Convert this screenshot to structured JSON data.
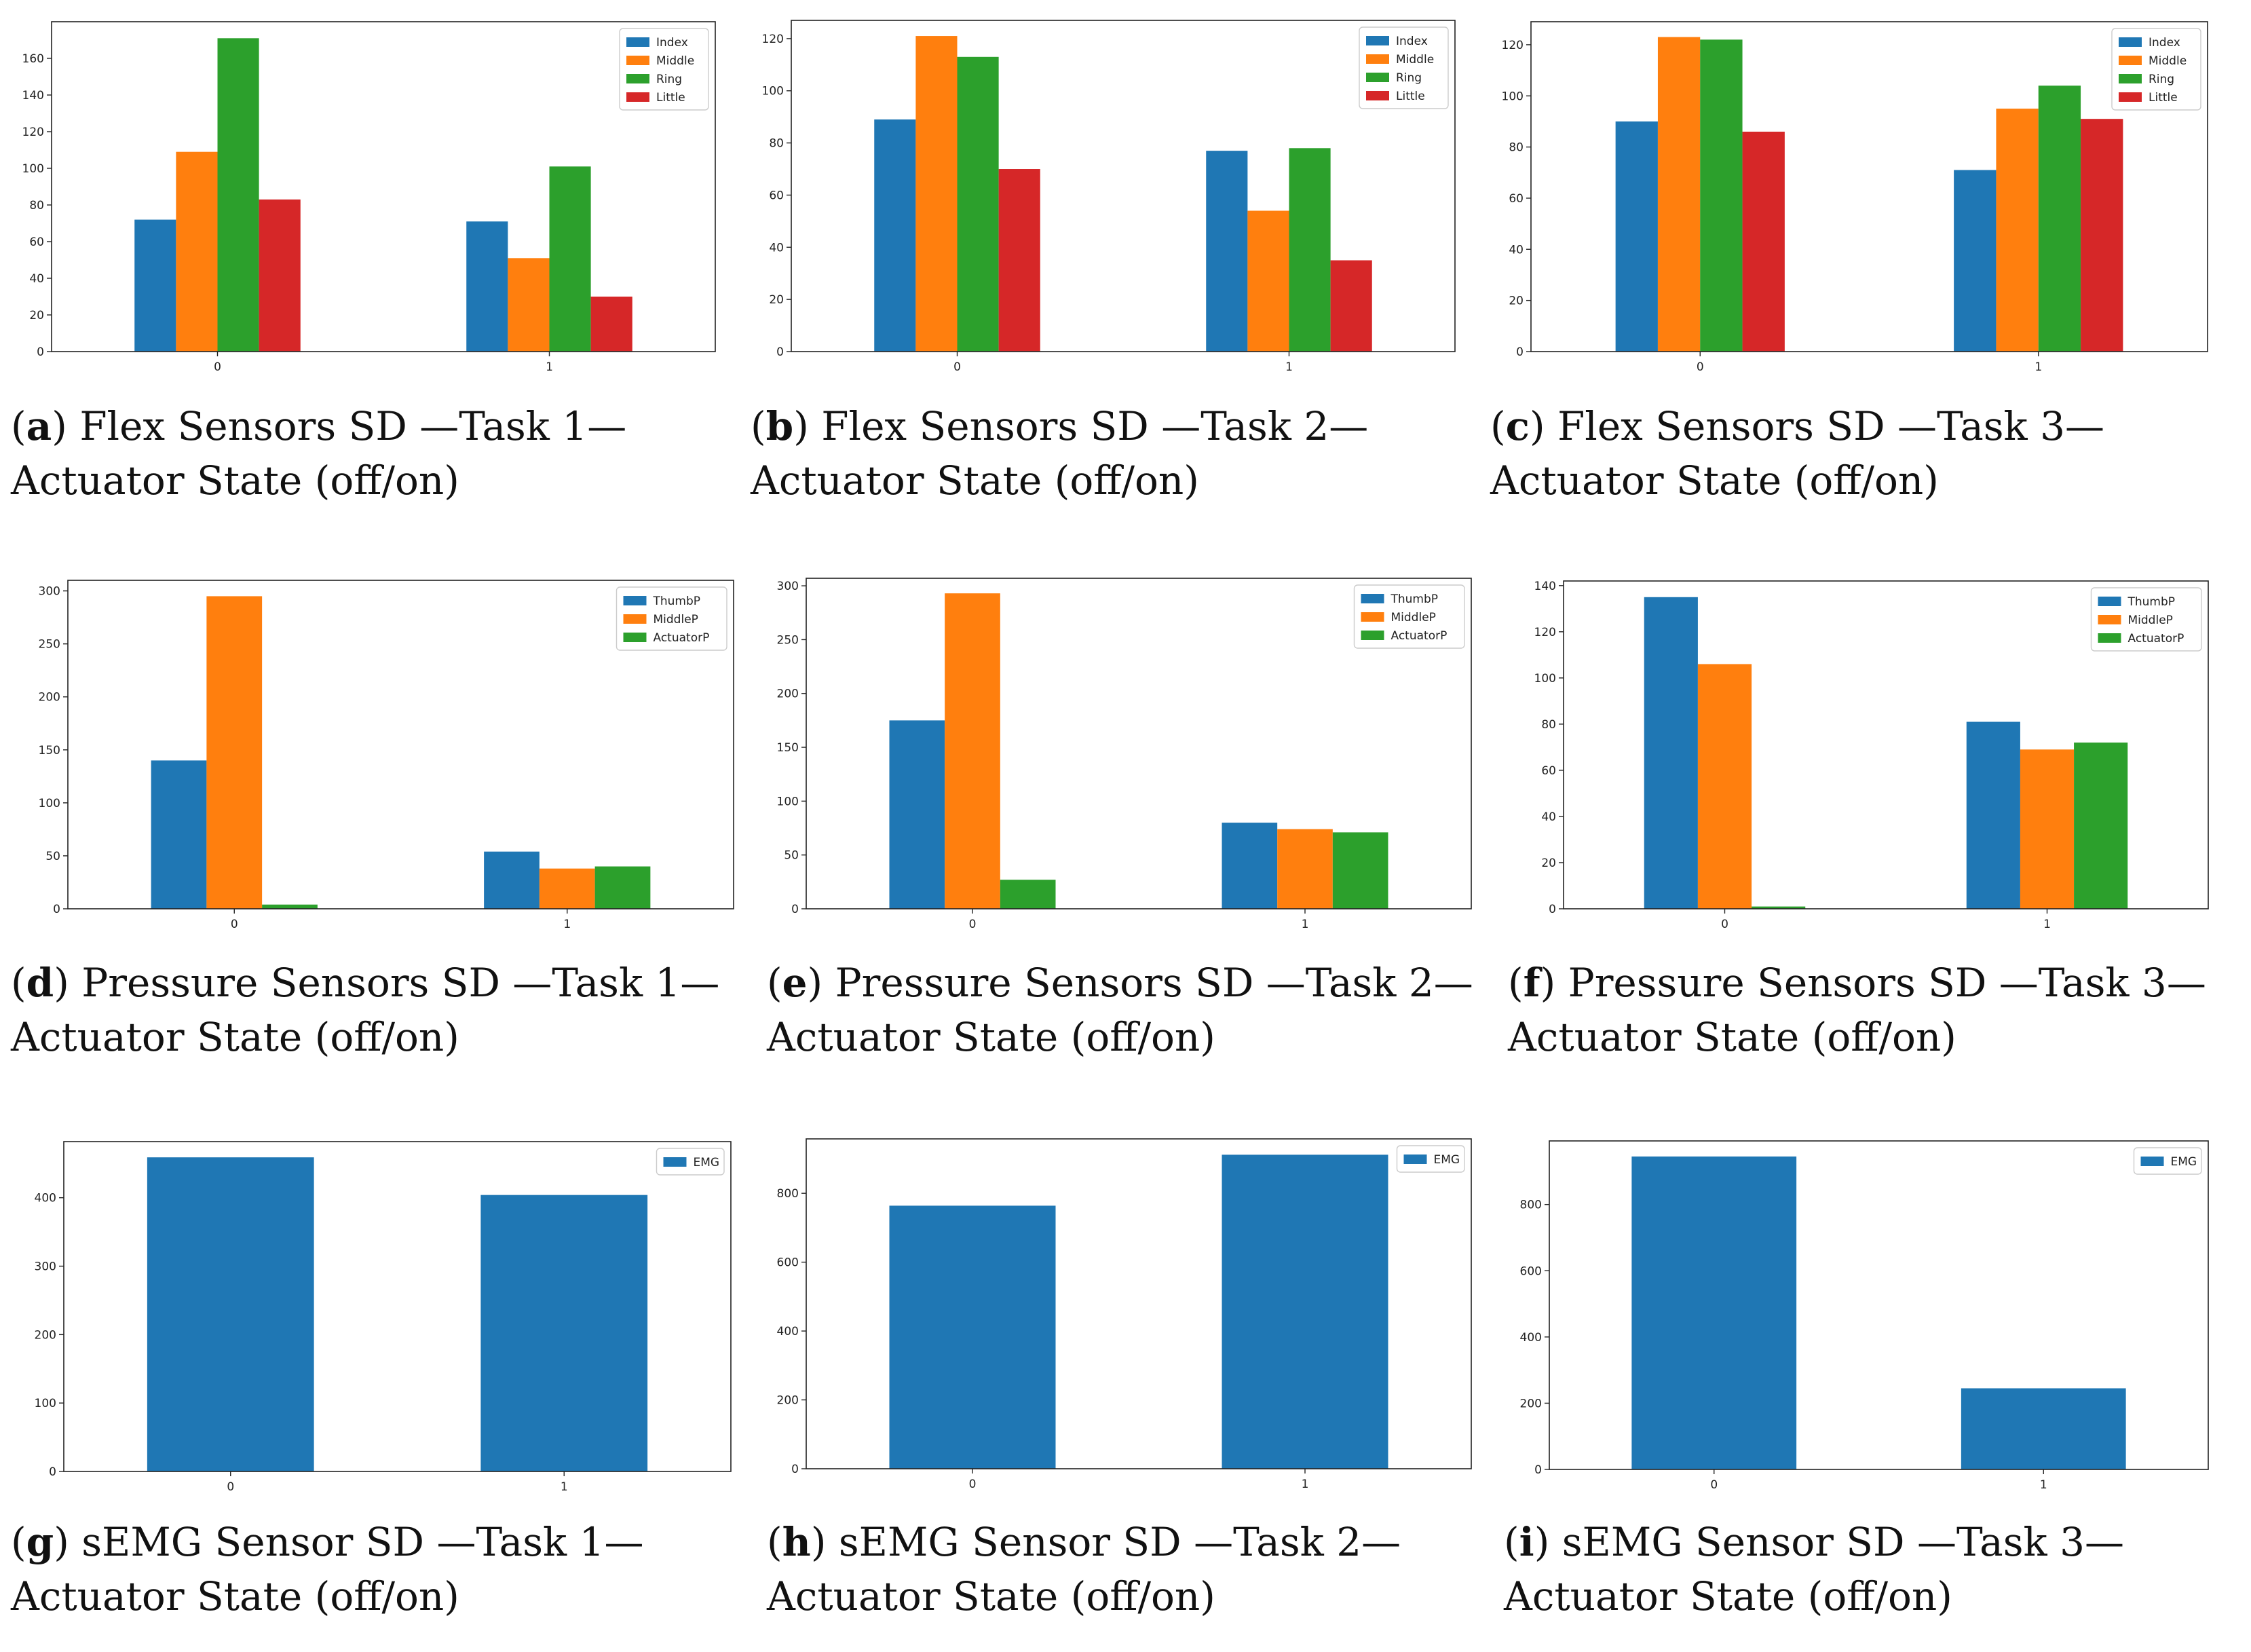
{
  "figure": {
    "colors": {
      "blue": "#1f77b4",
      "orange": "#ff7f0e",
      "green": "#2ca02c",
      "red": "#d62728"
    }
  },
  "panels": [
    {
      "id": "a",
      "caption": {
        "letter": "a",
        "title": "Flex Sensors SD —Task 1—",
        "subtitle": "Actuator State (off/on)"
      },
      "chart_data": {
        "type": "bar",
        "categories": [
          "0",
          "1"
        ],
        "series": [
          {
            "name": "Index",
            "values": [
              72,
              71
            ]
          },
          {
            "name": "Middle",
            "values": [
              109,
              51
            ]
          },
          {
            "name": "Ring",
            "values": [
              171,
              101
            ]
          },
          {
            "name": "Little",
            "values": [
              83,
              30
            ]
          }
        ],
        "ylim": [
          0,
          180
        ],
        "yticks": [
          0,
          20,
          40,
          60,
          80,
          100,
          120,
          140,
          160
        ],
        "legend": "top-right"
      }
    },
    {
      "id": "b",
      "caption": {
        "letter": "b",
        "title": "Flex Sensors SD —Task 2—",
        "subtitle": "Actuator State (off/on)"
      },
      "chart_data": {
        "type": "bar",
        "categories": [
          "0",
          "1"
        ],
        "series": [
          {
            "name": "Index",
            "values": [
              89,
              77
            ]
          },
          {
            "name": "Middle",
            "values": [
              121,
              54
            ]
          },
          {
            "name": "Ring",
            "values": [
              113,
              78
            ]
          },
          {
            "name": "Little",
            "values": [
              70,
              35
            ]
          }
        ],
        "ylim": [
          0,
          127
        ],
        "yticks": [
          0,
          20,
          40,
          60,
          80,
          100,
          120
        ],
        "legend": "top-right"
      }
    },
    {
      "id": "c",
      "caption": {
        "letter": "c",
        "title": "Flex Sensors SD —Task 3—",
        "subtitle": "Actuator State (off/on)"
      },
      "chart_data": {
        "type": "bar",
        "categories": [
          "0",
          "1"
        ],
        "series": [
          {
            "name": "Index",
            "values": [
              90,
              71
            ]
          },
          {
            "name": "Middle",
            "values": [
              123,
              95
            ]
          },
          {
            "name": "Ring",
            "values": [
              122,
              104
            ]
          },
          {
            "name": "Little",
            "values": [
              86,
              91
            ]
          }
        ],
        "ylim": [
          0,
          129
        ],
        "yticks": [
          0,
          20,
          40,
          60,
          80,
          100,
          120
        ],
        "legend": "top-right"
      }
    },
    {
      "id": "d",
      "caption": {
        "letter": "d",
        "title": "Pressure Sensors SD —Task 1—",
        "subtitle": "Actuator State (off/on)"
      },
      "chart_data": {
        "type": "bar",
        "categories": [
          "0",
          "1"
        ],
        "series": [
          {
            "name": "ThumbP",
            "values": [
              140,
              54
            ]
          },
          {
            "name": "MiddleP",
            "values": [
              295,
              38
            ]
          },
          {
            "name": "ActuatorP",
            "values": [
              4,
              40
            ]
          }
        ],
        "ylim": [
          0,
          310
        ],
        "yticks": [
          0,
          50,
          100,
          150,
          200,
          250,
          300
        ],
        "legend": "top-right"
      }
    },
    {
      "id": "e",
      "caption": {
        "letter": "e",
        "title": "Pressure Sensors SD —Task 2—",
        "subtitle": "Actuator State (off/on)"
      },
      "chart_data": {
        "type": "bar",
        "categories": [
          "0",
          "1"
        ],
        "series": [
          {
            "name": "ThumbP",
            "values": [
              175,
              80
            ]
          },
          {
            "name": "MiddleP",
            "values": [
              293,
              74
            ]
          },
          {
            "name": "ActuatorP",
            "values": [
              27,
              71
            ]
          }
        ],
        "ylim": [
          0,
          307
        ],
        "yticks": [
          0,
          50,
          100,
          150,
          200,
          250,
          300
        ],
        "legend": "top-right"
      }
    },
    {
      "id": "f",
      "caption": {
        "letter": "f",
        "title": "Pressure Sensors SD —Task 3—",
        "subtitle": "Actuator State (off/on)"
      },
      "chart_data": {
        "type": "bar",
        "categories": [
          "0",
          "1"
        ],
        "series": [
          {
            "name": "ThumbP",
            "values": [
              135,
              81
            ]
          },
          {
            "name": "MiddleP",
            "values": [
              106,
              69
            ]
          },
          {
            "name": "ActuatorP",
            "values": [
              1,
              72
            ]
          }
        ],
        "ylim": [
          0,
          142
        ],
        "yticks": [
          0,
          20,
          40,
          60,
          80,
          100,
          120,
          140
        ],
        "legend": "top-right"
      }
    },
    {
      "id": "g",
      "caption": {
        "letter": "g",
        "title": "sEMG Sensor SD —Task 1—",
        "subtitle": "Actuator State (off/on)"
      },
      "chart_data": {
        "type": "bar",
        "categories": [
          "0",
          "1"
        ],
        "series": [
          {
            "name": "EMG",
            "values": [
              459,
              404
            ]
          }
        ],
        "ylim": [
          0,
          482
        ],
        "yticks": [
          0,
          100,
          200,
          300,
          400
        ],
        "legend": "top-right"
      }
    },
    {
      "id": "h",
      "caption": {
        "letter": "h",
        "title": "sEMG Sensor SD —Task 2—",
        "subtitle": "Actuator State (off/on)"
      },
      "chart_data": {
        "type": "bar",
        "categories": [
          "0",
          "1"
        ],
        "series": [
          {
            "name": "EMG",
            "values": [
              764,
              912
            ]
          }
        ],
        "ylim": [
          0,
          958
        ],
        "yticks": [
          0,
          200,
          400,
          600,
          800
        ],
        "legend": "top-right"
      }
    },
    {
      "id": "i",
      "caption": {
        "letter": "i",
        "title": "sEMG Sensor SD —Task 3—",
        "subtitle": "Actuator State (off/on)"
      },
      "chart_data": {
        "type": "bar",
        "categories": [
          "0",
          "1"
        ],
        "series": [
          {
            "name": "EMG",
            "values": [
              945,
              245
            ]
          }
        ],
        "ylim": [
          0,
          992
        ],
        "yticks": [
          0,
          200,
          400,
          600,
          800
        ],
        "legend": "top-right"
      }
    }
  ]
}
